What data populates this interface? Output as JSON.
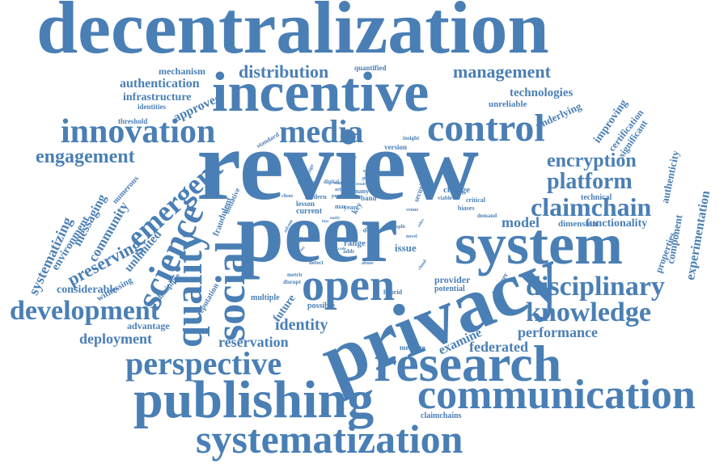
{
  "colors": {
    "word": "#4a7fb5",
    "background": "#ffffff"
  },
  "words": [
    "decentralization",
    "incentive",
    "review",
    "peer",
    "system",
    "privacy",
    "research",
    "publishing",
    "communication",
    "systematization",
    "control",
    "innovation",
    "media",
    "open",
    "social",
    "quality",
    "science",
    "emergent",
    "development",
    "perspective",
    "knowledge",
    "disciplinary",
    "claimchain",
    "platform",
    "encryption",
    "engagement",
    "distribution",
    "management",
    "authentication",
    "infrastructure",
    "mechanism",
    "technologies",
    "identity",
    "reservation",
    "federated",
    "performance",
    "deployment",
    "advantage",
    "considerable",
    "preserving",
    "systematizing",
    "community",
    "messaging",
    "environment",
    "unlimited",
    "experimentation",
    "component",
    "properties",
    "authenticity",
    "significant",
    "certification",
    "improving",
    "underlying",
    "unreliable",
    "functionality",
    "dimension",
    "model",
    "technical",
    "examine",
    "message",
    "provider",
    "potential",
    "hybrid",
    "possible",
    "future",
    "multiple",
    "reputation",
    "discipline",
    "witnessing",
    "fraudulent",
    "initiative",
    "numerous",
    "current",
    "lesson",
    "modern",
    "success",
    "digital",
    "change",
    "viable",
    "critical",
    "biases",
    "demand",
    "issue",
    "range",
    "band",
    "many",
    "security",
    "version",
    "insight",
    "contact",
    "standard",
    "quantified",
    "approved",
    "identities",
    "threshold",
    "year",
    "claimchains",
    "design",
    "article",
    "status",
    "phase",
    "entire",
    "client",
    "prone",
    "metric",
    "disrupt",
    "detect",
    "abuse",
    "novel",
    "venue",
    "split",
    "addr",
    "scope",
    "studies",
    "advent",
    "bias",
    "mac",
    "key",
    "user",
    "code",
    "trust",
    "notify",
    "relies",
    "cloud",
    "designer",
    "resolve"
  ]
}
